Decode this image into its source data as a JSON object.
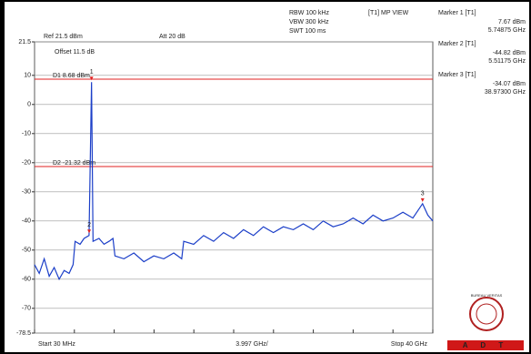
{
  "chart_data": {
    "type": "line",
    "annotations": [
      "Ref 21.5 dBm",
      "Att 20 dB",
      "Offset 11.5 dB",
      "RBW 100 kHz",
      "VBW 300 kHz",
      "SWT 100 ms",
      "[T1] MP VIEW"
    ],
    "x_labels": [
      "Start 30 MHz",
      "3.997 GHz/",
      "Stop 40 GHz"
    ],
    "xlim": [
      0.03,
      40
    ],
    "xticks": [
      0.03,
      4.027,
      8.024,
      12.021,
      16.018,
      20.015,
      24.012,
      28.009,
      32.006,
      36.003,
      40
    ],
    "ylim": [
      -78.5,
      21.5
    ],
    "yticks": [
      21.5,
      10,
      0,
      -10,
      -20,
      -30,
      -40,
      -50,
      -60,
      -70,
      -78.5
    ],
    "grid": true,
    "series": [
      {
        "color": "#1c3fc8",
        "x": [
          0.03,
          0.5,
          1,
          1.5,
          2,
          2.5,
          3,
          3.5,
          3.9,
          4.1,
          4.6,
          5.0,
          5.5,
          5.74875,
          5.9,
          6.5,
          7,
          7.5,
          7.9,
          8.1,
          9,
          10,
          11,
          12,
          13,
          14,
          14.8,
          15,
          16,
          17,
          18,
          19,
          20,
          21,
          22,
          23,
          24,
          25,
          26,
          27,
          28,
          29,
          30,
          31,
          32,
          33,
          34,
          35,
          36,
          37,
          38,
          38.973,
          39.5,
          40
        ],
        "values": [
          -55,
          -58,
          -53,
          -59,
          -56,
          -60,
          -57,
          -58,
          -55,
          -47,
          -48,
          -46,
          -45,
          7.67,
          -47,
          -46,
          -48,
          -47,
          -46,
          -52,
          -53,
          -51,
          -54,
          -52,
          -53,
          -51,
          -53,
          -47,
          -48,
          -45,
          -47,
          -44,
          -46,
          -43,
          -45,
          -42,
          -44,
          -42,
          -43,
          -41,
          -43,
          -40,
          -42,
          -41,
          -39,
          -41,
          -38,
          -40,
          -39,
          -37,
          -39,
          -34.07,
          -38,
          -40
        ]
      }
    ],
    "markers": {
      "color": "#e02020",
      "labels": [
        "1",
        "2",
        "3"
      ],
      "x": [
        5.74875,
        5.51175,
        38.973
      ],
      "values": [
        7.67,
        -44.82,
        -34.07
      ]
    },
    "marker_table": [
      {
        "title": "Marker 1 [T1]",
        "level": "7.67 dBm",
        "freq": "5.74875 GHz"
      },
      {
        "title": "Marker 2 [T1]",
        "level": "-44.82 dBm",
        "freq": "5.51175 GHz"
      },
      {
        "title": "Marker 3 [T1]",
        "level": "-34.07 dBm",
        "freq": "38.97300 GHz"
      }
    ],
    "display_lines": [
      {
        "label": "D1 8.68 dBm",
        "value": 8.68,
        "color": "#e02020"
      },
      {
        "label": "D2 -21.32 dBm",
        "value": -21.32,
        "color": "#e02020"
      }
    ],
    "logo": {
      "text": "BUREAU VERITAS",
      "brand": "A D T"
    }
  }
}
